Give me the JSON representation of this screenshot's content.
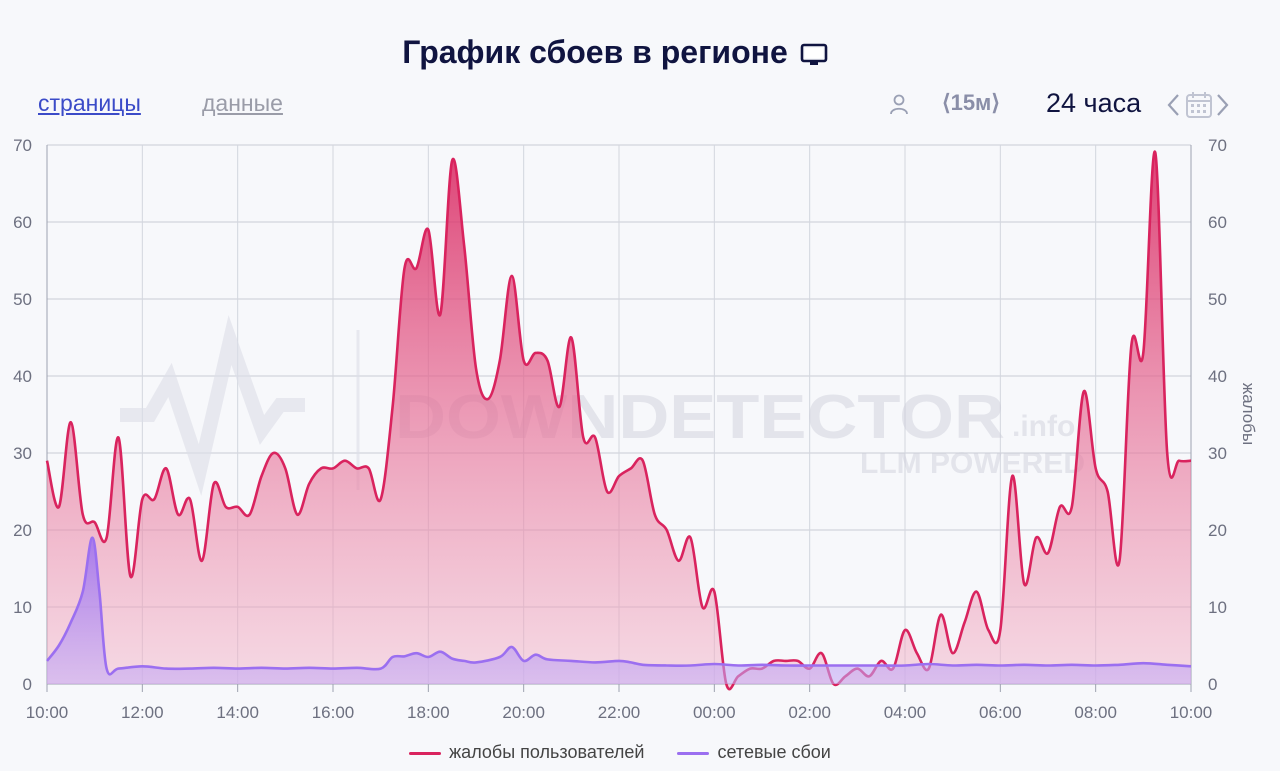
{
  "header": {
    "title": "График сбоев в регионе",
    "tabs": [
      {
        "label": "страницы",
        "active": true
      },
      {
        "label": "данные",
        "active": false
      }
    ],
    "interval_label": "⟨15м⟩",
    "range_label": "24 часа",
    "icons": [
      "monitor-icon",
      "user-icon",
      "chevron-left-icon",
      "calendar-icon",
      "chevron-right-icon"
    ]
  },
  "watermark": {
    "brand": "DOWNDETECTOR",
    "suffix": ".info",
    "tagline": "LLM POWERED"
  },
  "colors": {
    "complaints": "#d9235e",
    "network": "#9b6ff0"
  },
  "chart_data": {
    "type": "area",
    "x_ticks": [
      "10:00",
      "12:00",
      "14:00",
      "16:00",
      "18:00",
      "20:00",
      "22:00",
      "00:00",
      "02:00",
      "04:00",
      "06:00",
      "08:00",
      "10:00"
    ],
    "y_ticks": [
      0,
      10,
      20,
      30,
      40,
      50,
      60,
      70
    ],
    "ylim": [
      0,
      70
    ],
    "xlim_hours": [
      0,
      24
    ],
    "ylabel_right": "жалобы",
    "legend": "bottom-center",
    "grid": true,
    "series": [
      {
        "name": "жалобы пользователей",
        "color": "#d9235e",
        "points": [
          [
            0,
            29
          ],
          [
            0.25,
            23
          ],
          [
            0.5,
            34
          ],
          [
            0.75,
            22
          ],
          [
            1,
            21
          ],
          [
            1.25,
            19
          ],
          [
            1.5,
            32
          ],
          [
            1.75,
            14
          ],
          [
            2,
            24
          ],
          [
            2.25,
            24
          ],
          [
            2.5,
            28
          ],
          [
            2.75,
            22
          ],
          [
            3,
            24
          ],
          [
            3.25,
            16
          ],
          [
            3.5,
            26
          ],
          [
            3.75,
            23
          ],
          [
            4,
            23
          ],
          [
            4.25,
            22
          ],
          [
            4.5,
            27
          ],
          [
            4.75,
            30
          ],
          [
            5,
            28
          ],
          [
            5.25,
            22
          ],
          [
            5.5,
            26
          ],
          [
            5.75,
            28
          ],
          [
            6,
            28
          ],
          [
            6.25,
            29
          ],
          [
            6.5,
            28
          ],
          [
            6.75,
            28
          ],
          [
            7,
            24
          ],
          [
            7.25,
            36
          ],
          [
            7.5,
            54
          ],
          [
            7.75,
            54
          ],
          [
            8,
            59
          ],
          [
            8.25,
            48
          ],
          [
            8.5,
            68
          ],
          [
            8.75,
            57
          ],
          [
            9,
            41
          ],
          [
            9.25,
            37
          ],
          [
            9.5,
            42
          ],
          [
            9.75,
            53
          ],
          [
            10,
            42
          ],
          [
            10.25,
            43
          ],
          [
            10.5,
            42
          ],
          [
            10.75,
            36
          ],
          [
            11,
            45
          ],
          [
            11.25,
            32
          ],
          [
            11.5,
            32
          ],
          [
            11.75,
            25
          ],
          [
            12,
            27
          ],
          [
            12.25,
            28
          ],
          [
            12.5,
            29
          ],
          [
            12.75,
            22
          ],
          [
            13,
            20
          ],
          [
            13.25,
            16
          ],
          [
            13.5,
            19
          ],
          [
            13.75,
            10
          ],
          [
            14,
            12
          ],
          [
            14.25,
            0
          ],
          [
            14.5,
            1
          ],
          [
            14.75,
            2
          ],
          [
            15,
            2
          ],
          [
            15.25,
            3
          ],
          [
            15.5,
            3
          ],
          [
            15.75,
            3
          ],
          [
            16,
            2
          ],
          [
            16.25,
            4
          ],
          [
            16.5,
            0
          ],
          [
            16.75,
            1
          ],
          [
            17,
            2
          ],
          [
            17.25,
            1
          ],
          [
            17.5,
            3
          ],
          [
            17.75,
            2
          ],
          [
            18,
            7
          ],
          [
            18.25,
            4
          ],
          [
            18.5,
            2
          ],
          [
            18.75,
            9
          ],
          [
            19,
            4
          ],
          [
            19.25,
            8
          ],
          [
            19.5,
            12
          ],
          [
            19.75,
            7
          ],
          [
            20,
            7
          ],
          [
            20.25,
            27
          ],
          [
            20.5,
            13
          ],
          [
            20.75,
            19
          ],
          [
            21,
            17
          ],
          [
            21.25,
            23
          ],
          [
            21.5,
            23
          ],
          [
            21.75,
            38
          ],
          [
            22,
            28
          ],
          [
            22.25,
            25
          ],
          [
            22.5,
            16
          ],
          [
            22.75,
            44
          ],
          [
            23,
            43
          ],
          [
            23.25,
            69
          ],
          [
            23.5,
            30
          ],
          [
            23.75,
            29
          ],
          [
            24,
            29
          ]
        ]
      },
      {
        "name": "сетевые сбои",
        "color": "#9b6ff0",
        "points": [
          [
            0,
            3
          ],
          [
            0.25,
            5
          ],
          [
            0.5,
            8
          ],
          [
            0.75,
            12
          ],
          [
            0.95,
            19
          ],
          [
            1.1,
            12
          ],
          [
            1.25,
            2
          ],
          [
            1.5,
            2
          ],
          [
            2,
            2.3
          ],
          [
            2.5,
            2
          ],
          [
            3,
            2
          ],
          [
            3.5,
            2.1
          ],
          [
            4,
            2
          ],
          [
            4.5,
            2.1
          ],
          [
            5,
            2
          ],
          [
            5.5,
            2.1
          ],
          [
            6,
            2
          ],
          [
            6.5,
            2.1
          ],
          [
            7,
            2
          ],
          [
            7.25,
            3.5
          ],
          [
            7.5,
            3.6
          ],
          [
            7.75,
            4
          ],
          [
            8,
            3.5
          ],
          [
            8.25,
            4.2
          ],
          [
            8.5,
            3.3
          ],
          [
            8.75,
            3
          ],
          [
            9,
            2.8
          ],
          [
            9.5,
            3.5
          ],
          [
            9.75,
            4.8
          ],
          [
            10,
            3
          ],
          [
            10.25,
            3.8
          ],
          [
            10.5,
            3.2
          ],
          [
            11,
            3
          ],
          [
            11.5,
            2.8
          ],
          [
            12,
            3
          ],
          [
            12.25,
            2.8
          ],
          [
            12.5,
            2.5
          ],
          [
            13,
            2.4
          ],
          [
            13.5,
            2.4
          ],
          [
            14,
            2.6
          ],
          [
            14.5,
            2.4
          ],
          [
            15,
            2.5
          ],
          [
            15.5,
            2.4
          ],
          [
            16,
            2.4
          ],
          [
            16.5,
            2.4
          ],
          [
            17,
            2.4
          ],
          [
            17.5,
            2.4
          ],
          [
            18,
            2.4
          ],
          [
            18.5,
            2.6
          ],
          [
            19,
            2.4
          ],
          [
            19.5,
            2.5
          ],
          [
            20,
            2.4
          ],
          [
            20.5,
            2.5
          ],
          [
            21,
            2.4
          ],
          [
            21.5,
            2.5
          ],
          [
            22,
            2.4
          ],
          [
            22.5,
            2.5
          ],
          [
            23,
            2.7
          ],
          [
            23.5,
            2.5
          ],
          [
            24,
            2.3
          ]
        ]
      }
    ]
  }
}
